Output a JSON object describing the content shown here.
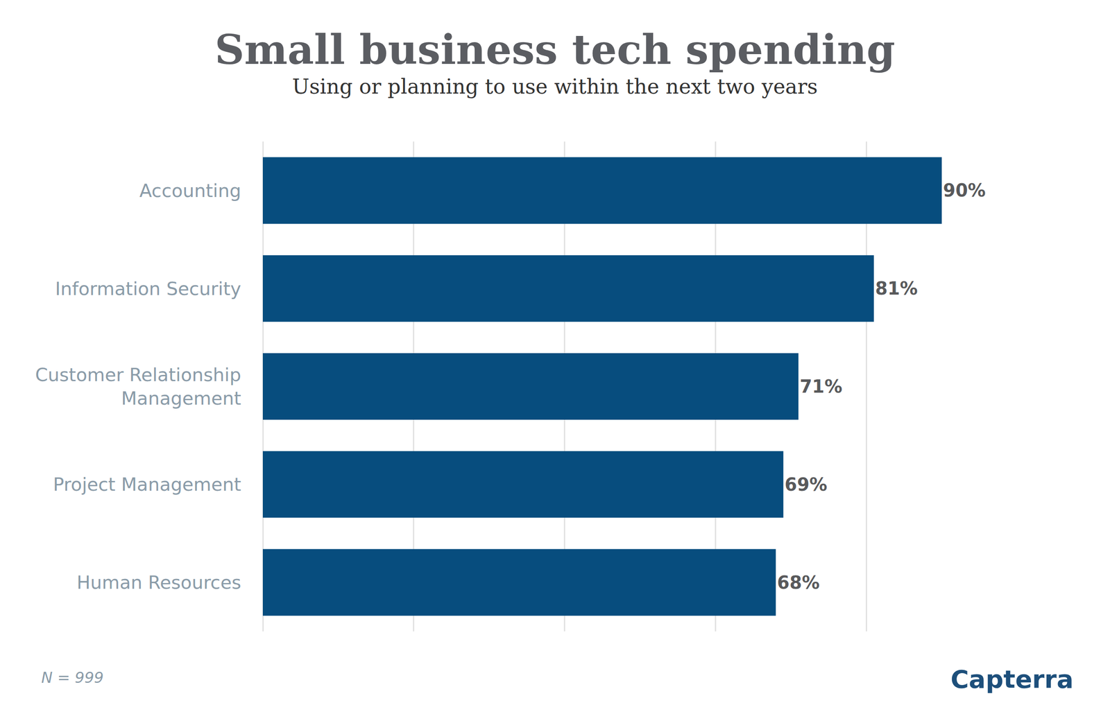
{
  "chart_data": {
    "type": "bar",
    "orientation": "horizontal",
    "title": "Small business tech spending",
    "subtitle": "Using or planning to use within the next two years",
    "note": "N = 999",
    "source": "Capterra",
    "categories": [
      "Accounting",
      "Information Security",
      "Customer Relationship Management",
      "Project Management",
      "Human Resources"
    ],
    "values": [
      90,
      81,
      71,
      69,
      68
    ],
    "value_labels": [
      "90%",
      "81%",
      "71%",
      "69%",
      "68%"
    ],
    "data_labels": true,
    "color": "#074d7e",
    "xlim": [
      0,
      100
    ],
    "xticks": [
      0,
      20,
      40,
      60,
      80,
      100
    ],
    "grid": true,
    "tick_labels": "y"
  }
}
